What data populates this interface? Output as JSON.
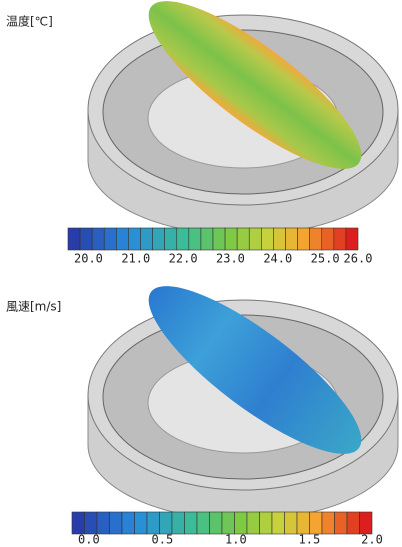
{
  "panels": [
    {
      "label": "温度[℃]",
      "ticks": [
        "20.0",
        "21.0",
        "22.0",
        "23.0",
        "24.0",
        "25.0",
        "26.0"
      ]
    },
    {
      "label": "風速[m/s]",
      "ticks": [
        "0.0",
        "0.5",
        "1.0",
        "1.5",
        "2.0"
      ]
    }
  ]
}
